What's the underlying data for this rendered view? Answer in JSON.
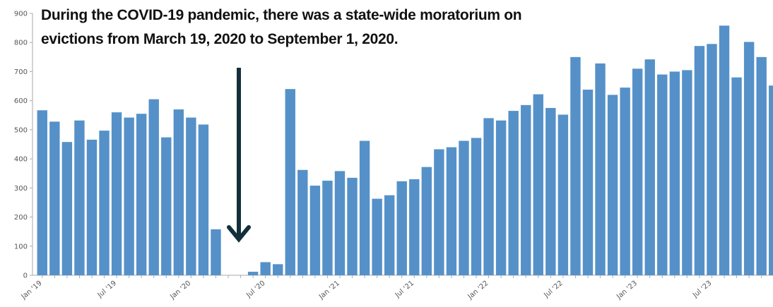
{
  "chart_data": {
    "type": "bar",
    "annotation": [
      "During the COVID-19 pandemic, there was a state-wide moratorium on",
      "evictions from March 19, 2020 to September 1, 2020."
    ],
    "categories": [
      "Jan '19",
      null,
      null,
      null,
      null,
      null,
      "Jul '19",
      null,
      null,
      null,
      null,
      null,
      "Jan '20",
      null,
      null,
      null,
      null,
      null,
      "Jul '20",
      null,
      null,
      null,
      null,
      null,
      "Jan '21",
      null,
      null,
      null,
      null,
      null,
      "Jul '21",
      null,
      null,
      null,
      null,
      null,
      "Jan '22",
      null,
      null,
      null,
      null,
      null,
      "Jul '22",
      null,
      null,
      null,
      null,
      null,
      "Jan '23",
      null,
      null,
      null,
      null,
      null,
      "Jul '23",
      null,
      null,
      null,
      null,
      null
    ],
    "values": [
      567,
      528,
      458,
      532,
      466,
      497,
      560,
      542,
      555,
      605,
      474,
      570,
      542,
      518,
      158,
      0,
      0,
      12,
      45,
      38,
      640,
      362,
      308,
      325,
      358,
      335,
      462,
      263,
      275,
      323,
      330,
      372,
      433,
      440,
      462,
      472,
      540,
      532,
      565,
      585,
      622,
      575,
      552,
      750,
      638,
      728,
      620,
      645,
      710,
      742,
      690,
      700,
      705,
      788,
      795,
      858,
      680,
      802,
      750,
      652
    ],
    "color": "#5591c8",
    "ylim": [
      0,
      900
    ],
    "yticks": [
      0,
      100,
      200,
      300,
      400,
      500,
      600,
      700,
      800,
      900
    ]
  }
}
